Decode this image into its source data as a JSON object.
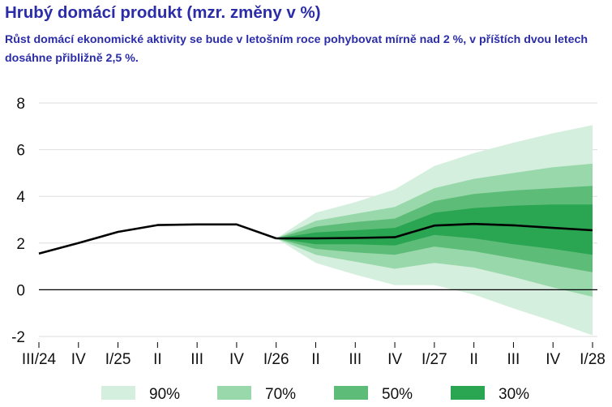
{
  "title": "Hrubý domácí produkt (mzr. změny v %)",
  "subtitle": "Růst domácí ekonomické aktivity se bude v letošním roce pohybovat mírně nad 2 %, v příštích dvou letech dosáhne přibližně 2,5 %.",
  "chart_data": {
    "type": "area",
    "categories": [
      "III/24",
      "IV",
      "I/25",
      "II",
      "III",
      "IV",
      "I/26",
      "II",
      "III",
      "IV",
      "I/27",
      "II",
      "III",
      "IV",
      "I/28"
    ],
    "ylim": [
      -2,
      8
    ],
    "yticks": [
      -2,
      0,
      2,
      4,
      6,
      8
    ],
    "grid": true,
    "legend_position": "bottom",
    "history": [
      1.55,
      2.0,
      2.48,
      2.77,
      2.8,
      2.8,
      2.2,
      null,
      null,
      null,
      null,
      null,
      null,
      null,
      null
    ],
    "forecast": [
      null,
      null,
      null,
      null,
      null,
      null,
      2.2,
      2.2,
      2.22,
      2.25,
      2.75,
      2.82,
      2.76,
      2.65,
      2.55
    ],
    "bands": [
      {
        "name": "90%",
        "color": "#d4efdd",
        "lower": [
          null,
          null,
          null,
          null,
          null,
          null,
          2.2,
          1.15,
          0.65,
          0.2,
          0.2,
          -0.2,
          -0.8,
          -1.35,
          -1.95
        ],
        "upper": [
          null,
          null,
          null,
          null,
          null,
          null,
          2.2,
          3.3,
          3.75,
          4.3,
          5.3,
          5.85,
          6.3,
          6.7,
          7.05
        ]
      },
      {
        "name": "70%",
        "color": "#98d8ab",
        "lower": [
          null,
          null,
          null,
          null,
          null,
          null,
          2.2,
          1.5,
          1.2,
          0.9,
          1.15,
          0.95,
          0.55,
          0.1,
          -0.3
        ],
        "upper": [
          null,
          null,
          null,
          null,
          null,
          null,
          2.2,
          2.95,
          3.25,
          3.55,
          4.35,
          4.75,
          5.0,
          5.25,
          5.4
        ]
      },
      {
        "name": "50%",
        "color": "#5dbc77",
        "lower": [
          null,
          null,
          null,
          null,
          null,
          null,
          2.2,
          1.75,
          1.6,
          1.5,
          1.85,
          1.65,
          1.35,
          1.05,
          0.75
        ],
        "upper": [
          null,
          null,
          null,
          null,
          null,
          null,
          2.2,
          2.7,
          2.9,
          3.05,
          3.8,
          4.1,
          4.25,
          4.35,
          4.45
        ]
      },
      {
        "name": "30%",
        "color": "#2aa552",
        "lower": [
          null,
          null,
          null,
          null,
          null,
          null,
          2.2,
          1.95,
          1.95,
          1.9,
          2.35,
          2.2,
          1.95,
          1.75,
          1.5
        ],
        "upper": [
          null,
          null,
          null,
          null,
          null,
          null,
          2.2,
          2.45,
          2.55,
          2.65,
          3.3,
          3.5,
          3.6,
          3.65,
          3.65
        ]
      }
    ],
    "line_color": "#000000"
  }
}
